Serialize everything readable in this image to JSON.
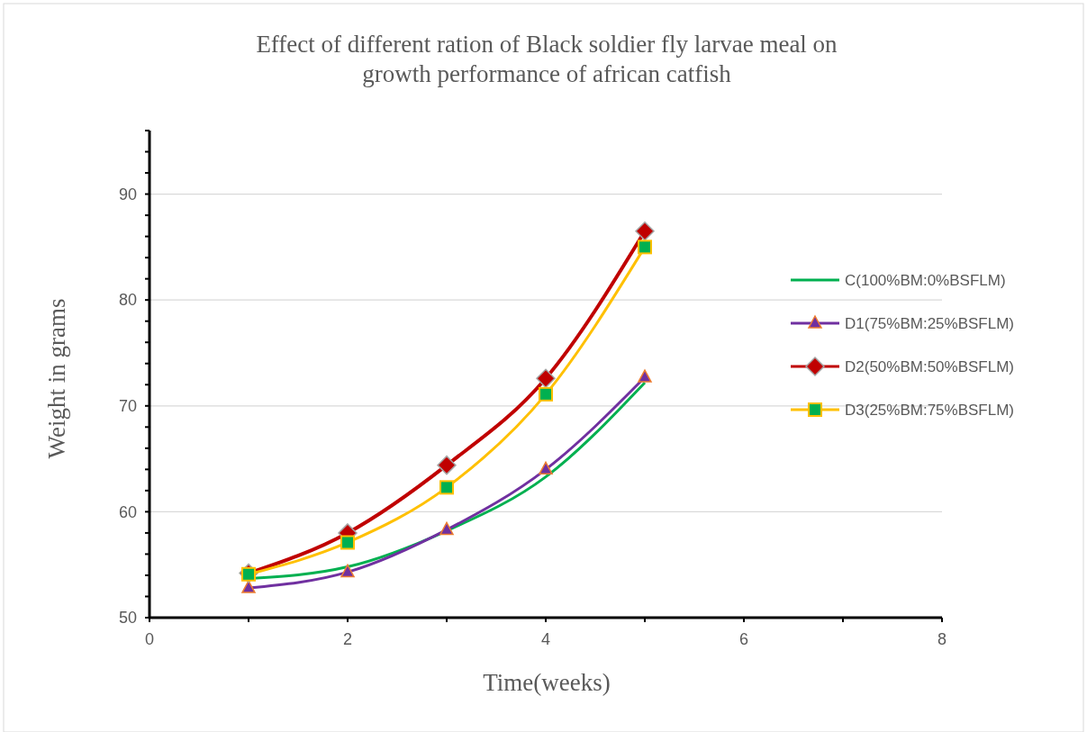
{
  "chart_data": {
    "type": "line",
    "title": "Effect of different ration of Black soldier  fly larvae meal on growth performance of african catfish",
    "xlabel": "Time(weeks)",
    "ylabel": "Weight in grams",
    "x": [
      1,
      2,
      3,
      4,
      5
    ],
    "xlim": [
      0,
      8
    ],
    "xticks": [
      0,
      2,
      4,
      6,
      8
    ],
    "ylim": [
      50,
      96
    ],
    "yticks": [
      50,
      60,
      70,
      80,
      90
    ],
    "grid": "y",
    "legend": "right",
    "line_style": "solid",
    "series": [
      {
        "name": "C(100%BM:0%BSFLM)",
        "color": "#00b050",
        "marker": "none",
        "values": [
          53.7,
          54.8,
          58.2,
          63.3,
          72.2
        ]
      },
      {
        "name": "D1(75%BM:25%BSFLM)",
        "color": "#7030a0",
        "marker": "triangle",
        "values": [
          52.8,
          54.3,
          58.3,
          64.0,
          72.7
        ]
      },
      {
        "name": "D2(50%BM:50%BSFLM)",
        "color": "#c00000",
        "marker": "diamond",
        "values": [
          54.2,
          58.0,
          64.4,
          72.6,
          86.5
        ]
      },
      {
        "name": "D3(25%BM:75%BSFLM)",
        "color": "#ffc000",
        "marker": "square",
        "values": [
          54.1,
          57.1,
          62.3,
          71.1,
          85.0
        ]
      }
    ]
  }
}
